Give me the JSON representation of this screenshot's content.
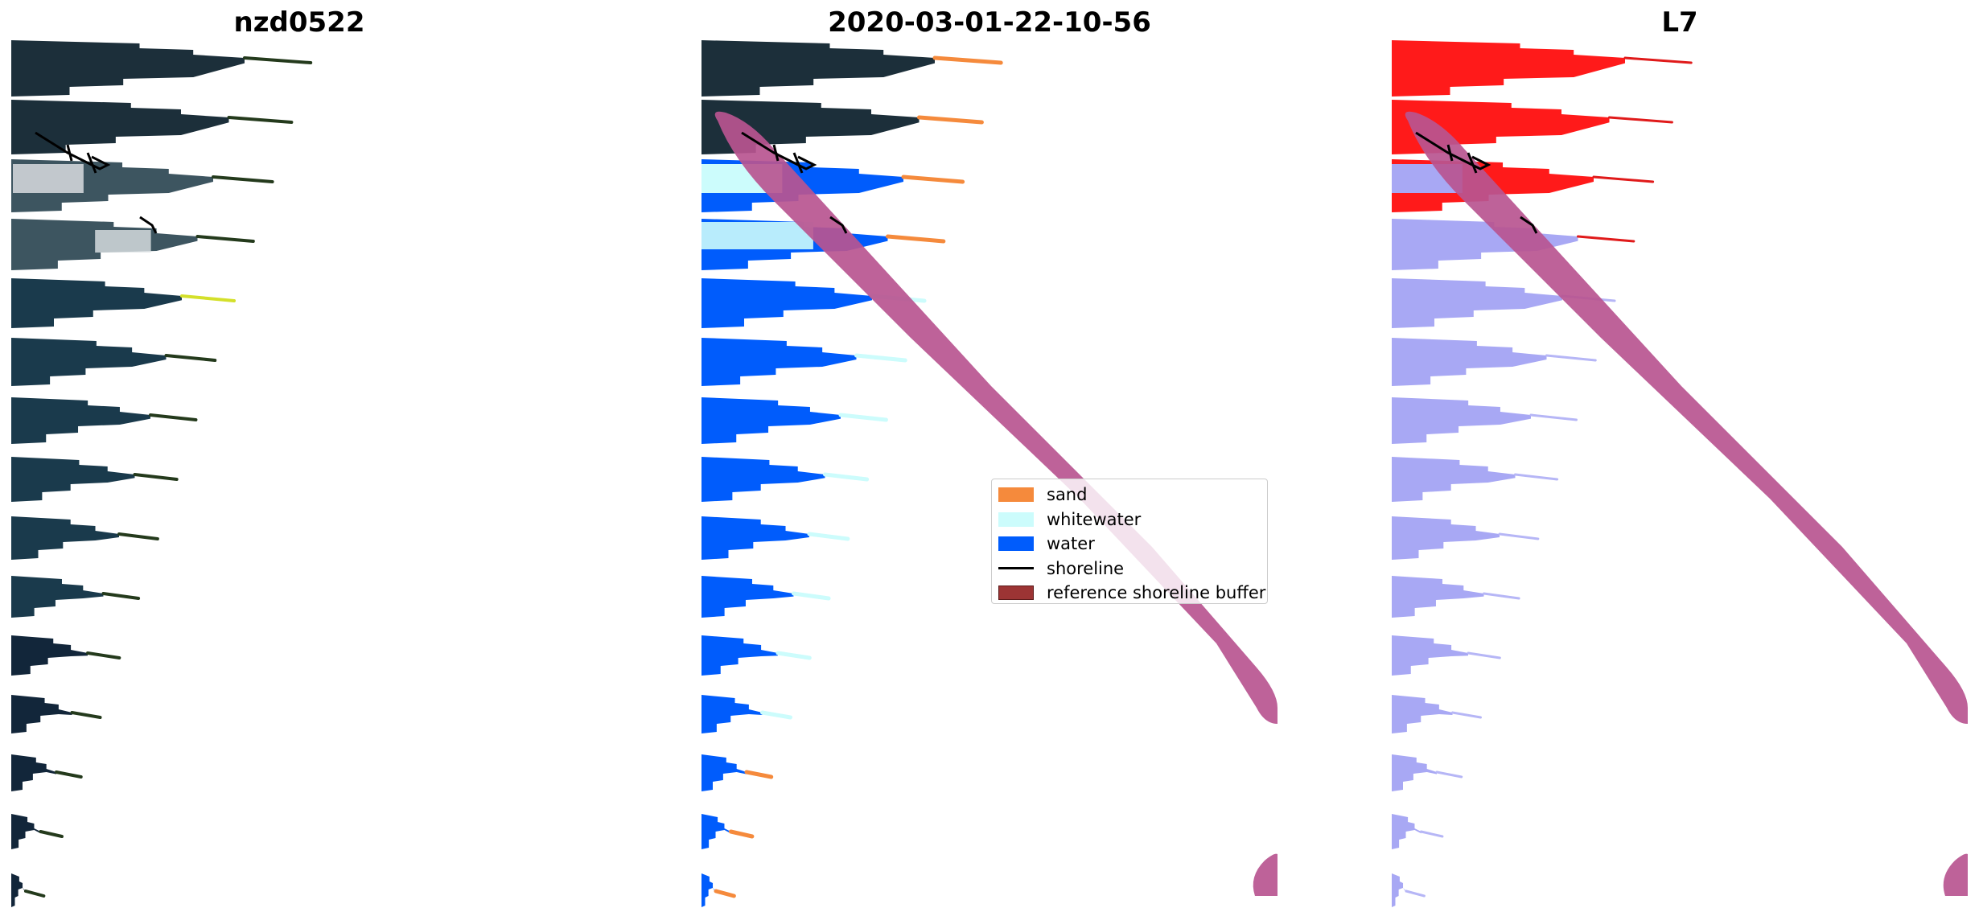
{
  "panels": {
    "left_title": "nzd0522",
    "middle_title": "2020-03-01-22-10-56",
    "right_title": "L7"
  },
  "legend": {
    "items": [
      {
        "label": "sand",
        "kind": "patch",
        "color": "#f58a3c"
      },
      {
        "label": "whitewater",
        "kind": "patch",
        "color": "#ccfcfc"
      },
      {
        "label": "water",
        "kind": "patch",
        "color": "#005cfc"
      },
      {
        "label": "shoreline",
        "kind": "line",
        "color": "#000000"
      },
      {
        "label": "reference shoreline buffer",
        "kind": "patch",
        "color": "#9c3434"
      }
    ]
  },
  "colors": {
    "buffer": "#b95590",
    "rgb_water": "#1a3a4c",
    "nir_land": "#ff1a1a",
    "swir_water": "#a8a8f4"
  }
}
